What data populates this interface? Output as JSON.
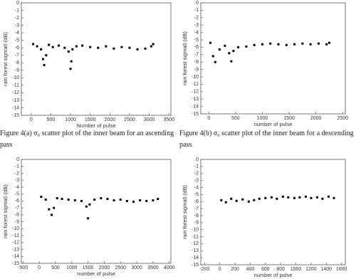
{
  "chart_data": [
    {
      "type": "scatter",
      "x_label": "Number of pulse",
      "y_label": "rain forest sigma0 (dB)",
      "caption": "Figure 4(a) σ₀ scatter plot of the inner beam for an ascending pass",
      "xlim": [
        -250,
        3550
      ],
      "xticks": [
        0,
        500,
        1000,
        1500,
        2000,
        2500,
        3000,
        3500
      ],
      "ylim": [
        -15,
        0
      ],
      "yticks": [
        0,
        -1,
        -2,
        -3,
        -4,
        -5,
        -6,
        -7,
        -8,
        -9,
        -10,
        -11,
        -12,
        -13,
        -14,
        -15
      ],
      "color": "#000000",
      "x": [
        50,
        150,
        250,
        300,
        330,
        380,
        450,
        550,
        700,
        850,
        950,
        1000,
        1020,
        1050,
        1150,
        1300,
        1500,
        1700,
        1900,
        2100,
        2300,
        2500,
        2700,
        2900,
        3050,
        3100
      ],
      "values": [
        -5.5,
        -5.8,
        -6.2,
        -7.5,
        -8.3,
        -7.0,
        -5.6,
        -5.9,
        -5.7,
        -6.0,
        -6.5,
        -8.8,
        -7.8,
        -6.2,
        -5.8,
        -5.7,
        -5.9,
        -6.0,
        -5.8,
        -6.1,
        -5.9,
        -6.0,
        -6.2,
        -6.1,
        -5.8,
        -5.5
      ]
    },
    {
      "type": "scatter",
      "x_label": "number of pulse",
      "y_label": "rain forest sigma0 (dB)",
      "caption": "Figure 4(b) σ₀ scatter plot of the inner beam for a descending pass",
      "xlim": [
        -150,
        2550
      ],
      "xticks": [
        0,
        500,
        1000,
        1500,
        2000,
        2500
      ],
      "ylim": [
        -15,
        0
      ],
      "yticks": [
        0,
        -1,
        -2,
        -3,
        -4,
        -5,
        -6,
        -7,
        -8,
        -9,
        -10,
        -11,
        -12,
        -13,
        -14,
        -15
      ],
      "color": "#000000",
      "x": [
        30,
        80,
        120,
        200,
        300,
        380,
        420,
        460,
        550,
        700,
        850,
        1000,
        1150,
        1300,
        1450,
        1600,
        1750,
        1900,
        2050,
        2200,
        2250
      ],
      "values": [
        -5.4,
        -7.2,
        -8.0,
        -6.3,
        -5.8,
        -6.8,
        -7.9,
        -6.5,
        -6.0,
        -5.9,
        -5.7,
        -5.6,
        -5.5,
        -5.6,
        -5.7,
        -5.6,
        -5.5,
        -5.6,
        -5.5,
        -5.6,
        -5.4
      ]
    },
    {
      "type": "scatter",
      "x_label": "number of pulse",
      "y_label": "rain forest sigma0 (dB)",
      "xlim": [
        -550,
        4050
      ],
      "xticks": [
        -500,
        0,
        500,
        1000,
        1500,
        2000,
        2500,
        3000,
        3500,
        4000
      ],
      "ylim": [
        -15,
        0
      ],
      "yticks": [
        0,
        -1,
        -2,
        -3,
        -4,
        -5,
        -6,
        -7,
        -8,
        -9,
        -10,
        -11,
        -12,
        -13,
        -14,
        -15
      ],
      "color": "#000000",
      "x": [
        60,
        200,
        300,
        380,
        450,
        550,
        700,
        900,
        1100,
        1300,
        1450,
        1500,
        1550,
        1700,
        1900,
        2100,
        2300,
        2500,
        2700,
        2900,
        3100,
        3300,
        3500,
        3650
      ],
      "values": [
        -5.4,
        -5.8,
        -7.2,
        -8.0,
        -7.0,
        -5.6,
        -5.7,
        -5.8,
        -5.9,
        -6.0,
        -6.8,
        -8.5,
        -6.5,
        -5.8,
        -5.6,
        -5.7,
        -5.9,
        -5.8,
        -6.0,
        -6.1,
        -5.9,
        -6.0,
        -5.9,
        -5.7
      ]
    },
    {
      "type": "scatter",
      "x_label": "number of pulse",
      "y_label": "rain forest sigma0 (dB)",
      "xlim": [
        -250,
        1650
      ],
      "xticks": [
        -200,
        0,
        200,
        400,
        600,
        800,
        1000,
        1200,
        1400,
        1600
      ],
      "ylim": [
        -15,
        0
      ],
      "yticks": [
        0,
        -1,
        -2,
        -3,
        -4,
        -5,
        -6,
        -7,
        -8,
        -9,
        -10,
        -11,
        -12,
        -13,
        -14,
        -15
      ],
      "color": "#000000",
      "x": [
        20,
        80,
        150,
        220,
        300,
        380,
        450,
        520,
        600,
        680,
        750,
        830,
        900,
        980,
        1050,
        1130,
        1200,
        1280,
        1350,
        1430,
        1500
      ],
      "values": [
        -5.8,
        -6.1,
        -5.6,
        -5.9,
        -5.7,
        -6.0,
        -5.8,
        -5.6,
        -5.5,
        -5.4,
        -5.6,
        -5.3,
        -5.4,
        -5.5,
        -5.4,
        -5.3,
        -5.5,
        -5.4,
        -5.6,
        -5.3,
        -5.5
      ]
    }
  ]
}
